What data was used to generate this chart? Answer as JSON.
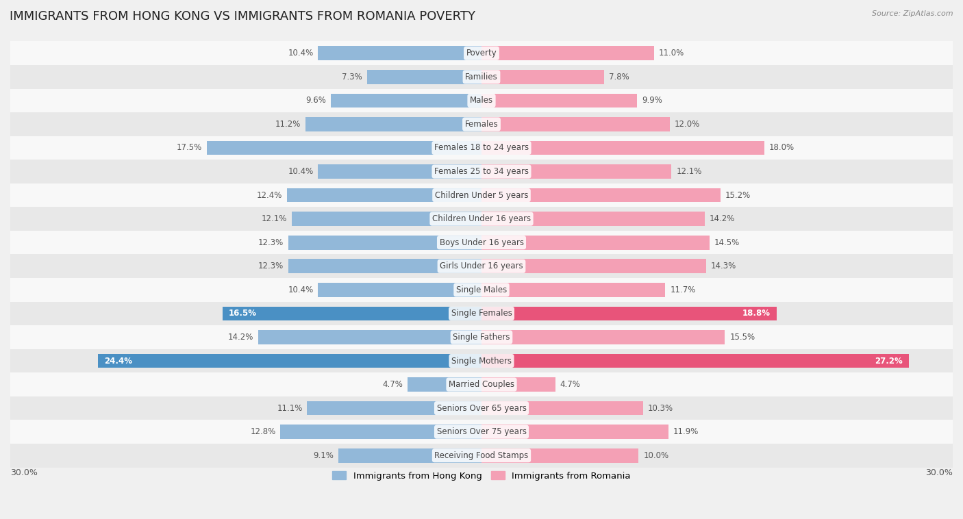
{
  "title": "IMMIGRANTS FROM HONG KONG VS IMMIGRANTS FROM ROMANIA POVERTY",
  "source": "Source: ZipAtlas.com",
  "categories": [
    "Poverty",
    "Families",
    "Males",
    "Females",
    "Females 18 to 24 years",
    "Females 25 to 34 years",
    "Children Under 5 years",
    "Children Under 16 years",
    "Boys Under 16 years",
    "Girls Under 16 years",
    "Single Males",
    "Single Females",
    "Single Fathers",
    "Single Mothers",
    "Married Couples",
    "Seniors Over 65 years",
    "Seniors Over 75 years",
    "Receiving Food Stamps"
  ],
  "hk_values": [
    10.4,
    7.3,
    9.6,
    11.2,
    17.5,
    10.4,
    12.4,
    12.1,
    12.3,
    12.3,
    10.4,
    16.5,
    14.2,
    24.4,
    4.7,
    11.1,
    12.8,
    9.1
  ],
  "ro_values": [
    11.0,
    7.8,
    9.9,
    12.0,
    18.0,
    12.1,
    15.2,
    14.2,
    14.5,
    14.3,
    11.7,
    18.8,
    15.5,
    27.2,
    4.7,
    10.3,
    11.9,
    10.0
  ],
  "hk_color": "#92b8d9",
  "ro_color": "#f4a0b5",
  "hk_label": "Immigrants from Hong Kong",
  "ro_label": "Immigrants from Romania",
  "hk_highlight_color": "#4a90c4",
  "ro_highlight_color": "#e8547a",
  "highlight_indices": [
    11,
    13
  ],
  "xlim": 30.0,
  "background_color": "#f0f0f0",
  "row_bg_even": "#f8f8f8",
  "row_bg_odd": "#e8e8e8",
  "title_fontsize": 13,
  "label_fontsize": 8.5,
  "value_fontsize": 8.5
}
